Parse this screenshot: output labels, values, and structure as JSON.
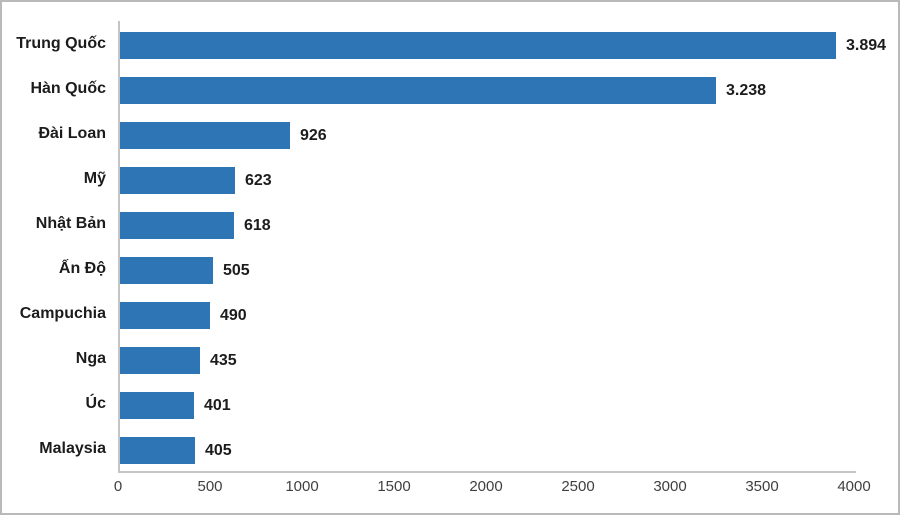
{
  "chart_data": {
    "type": "bar",
    "orientation": "horizontal",
    "title": "",
    "xlabel": "",
    "ylabel": "",
    "categories": [
      "Trung Quốc",
      "Hàn Quốc",
      "Đài Loan",
      "Mỹ",
      "Nhật Bản",
      "Ấn Độ",
      "Campuchia",
      "Nga",
      "Úc",
      "Malaysia"
    ],
    "values": [
      3894,
      3238,
      926,
      623,
      618,
      505,
      490,
      435,
      401,
      405
    ],
    "value_labels": [
      "3.894",
      "3.238",
      "926",
      "623",
      "618",
      "505",
      "490",
      "435",
      "401",
      "405"
    ],
    "xlim": [
      0,
      4000
    ],
    "x_ticks": [
      0,
      500,
      1000,
      1500,
      2000,
      2500,
      3000,
      3500,
      4000
    ],
    "x_tick_labels": [
      "0",
      "500",
      "1000",
      "1500",
      "2000",
      "2500",
      "3000",
      "3500",
      "4000"
    ],
    "grid": false,
    "legend": "none",
    "colors": {
      "bar": "#2e75b6",
      "axis_line": "#c6c3c3",
      "label_text": "#1c1c1c",
      "tick_text": "#3f3f3f",
      "frame_border": "#b9b9b9",
      "background": "#ffffff"
    }
  }
}
